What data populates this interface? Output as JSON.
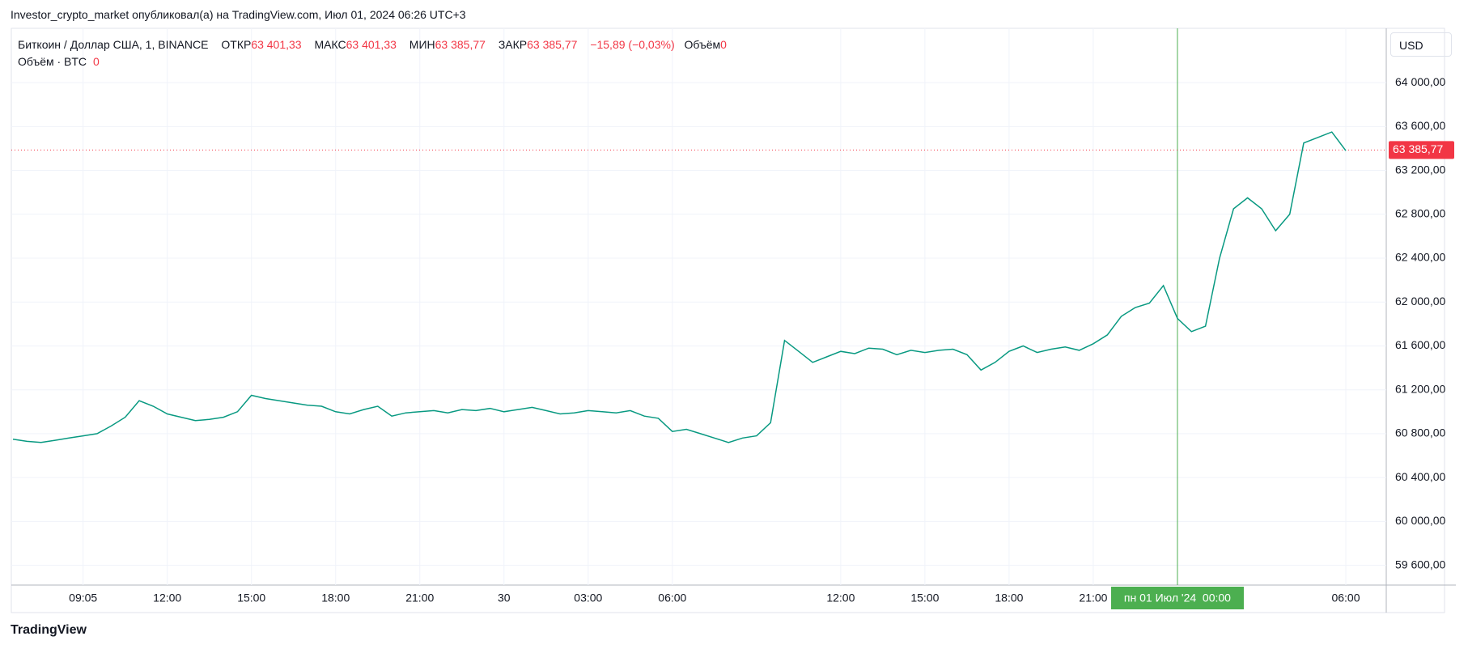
{
  "header": {
    "title": "Investor_crypto_market опубликовал(а) на TradingView.com, Июл 01, 2024 06:26 UTC+3"
  },
  "chart_data": {
    "type": "line",
    "series": [
      {
        "name": "Биткоин / Доллар США, 1, BINANCE",
        "color": "#089981",
        "values": [
          60750,
          60730,
          60720,
          60740,
          60760,
          60780,
          60800,
          60870,
          60950,
          61100,
          61050,
          60980,
          60950,
          60920,
          60930,
          60950,
          61000,
          61150,
          61120,
          61100,
          61080,
          61060,
          61050,
          61000,
          60980,
          61020,
          61050,
          60960,
          60990,
          61000,
          61010,
          60990,
          61020,
          61010,
          61030,
          61000,
          61020,
          61040,
          61010,
          60980,
          60990,
          61010,
          61000,
          60990,
          61010,
          60960,
          60940,
          60820,
          60840,
          60800,
          60760,
          60720,
          60760,
          60780,
          60900,
          61650,
          61550,
          61450,
          61500,
          61550,
          61530,
          61580,
          61570,
          61520,
          61560,
          61540,
          61560,
          61570,
          61520,
          61380,
          61450,
          61550,
          61600,
          61540,
          61570,
          61590,
          61560,
          61620,
          61700,
          61870,
          61950,
          61990,
          62150,
          61850,
          61730,
          61780,
          62400,
          62850,
          62950,
          62850,
          62650,
          62800,
          63450,
          63500,
          63550,
          63380
        ]
      }
    ],
    "categories": [
      null,
      null,
      null,
      null,
      null,
      "09:05",
      null,
      null,
      null,
      null,
      null,
      "12:00",
      null,
      null,
      null,
      null,
      null,
      "15:00",
      null,
      null,
      null,
      null,
      null,
      "18:00",
      null,
      null,
      null,
      null,
      null,
      "21:00",
      null,
      null,
      null,
      null,
      null,
      "30",
      null,
      null,
      null,
      null,
      null,
      "03:00",
      null,
      null,
      null,
      null,
      null,
      "06:00",
      null,
      null,
      null,
      null,
      null,
      null,
      null,
      null,
      null,
      null,
      null,
      "12:00",
      null,
      null,
      null,
      null,
      null,
      "15:00",
      null,
      null,
      null,
      null,
      null,
      "18:00",
      null,
      null,
      null,
      null,
      null,
      "21:00",
      null,
      null,
      null,
      null,
      null,
      "пн 01 Июл '24  00:00",
      null,
      null,
      null,
      null,
      null,
      null,
      null,
      null,
      null,
      null,
      null,
      "06:00"
    ],
    "ylim": [
      59420,
      64495
    ],
    "yticks": [
      {
        "value": 59600,
        "label": "59 600,00"
      },
      {
        "value": 60000,
        "label": "60 000,00"
      },
      {
        "value": 60400,
        "label": "60 400,00"
      },
      {
        "value": 60800,
        "label": "60 800,00"
      },
      {
        "value": 61200,
        "label": "61 200,00"
      },
      {
        "value": 61600,
        "label": "61 600,00"
      },
      {
        "value": 62000,
        "label": "62 000,00"
      },
      {
        "value": 62400,
        "label": "62 400,00"
      },
      {
        "value": 62800,
        "label": "62 800,00"
      },
      {
        "value": 63200,
        "label": "63 200,00"
      },
      {
        "value": 63600,
        "label": "63 600,00"
      },
      {
        "value": 64000,
        "label": "64 000,00"
      }
    ],
    "grid": true,
    "currency": "USD",
    "last_price": {
      "value": 63385.77,
      "label": "63 385,77",
      "color": "#f23645"
    }
  },
  "legend": {
    "open_label": "ОТКР",
    "open": "63 401,33",
    "high_label": "МАКС",
    "high": "63 401,33",
    "low_label": "МИН",
    "low": "63 385,77",
    "close_label": "ЗАКР",
    "close": "63 385,77",
    "change": "−15,89 (−0,03%)",
    "volume_label": "Объём",
    "volume": "0",
    "volume_study": "Объём · BTC",
    "volume_study_value": "0"
  },
  "footer": {
    "brand": "TradingView"
  }
}
